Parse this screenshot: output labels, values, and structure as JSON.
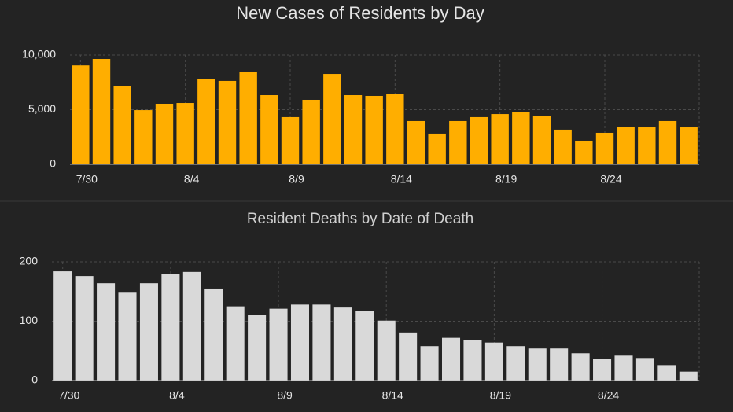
{
  "chart_data": [
    {
      "type": "bar",
      "title": "New Cases of Residents by Day",
      "categories": [
        "7/30",
        null,
        null,
        null,
        null,
        "8/4",
        null,
        null,
        null,
        null,
        "8/9",
        null,
        null,
        null,
        null,
        "8/14",
        null,
        null,
        null,
        null,
        "8/19",
        null,
        null,
        null,
        null,
        "8/24",
        null,
        null,
        null,
        null
      ],
      "values": [
        9050,
        9640,
        7190,
        4960,
        5540,
        5610,
        7770,
        7630,
        8490,
        6330,
        4320,
        5900,
        8270,
        6330,
        6260,
        6470,
        3960,
        2810,
        3960,
        4320,
        4600,
        4750,
        4390,
        3170,
        2160,
        2880,
        3450,
        3380,
        3960,
        3380
      ],
      "color": "#ffae00",
      "ylim": [
        0,
        10000
      ],
      "yticks": [
        0,
        {
          "value": 5000,
          "label": "5,000"
        },
        {
          "value": 10000,
          "label": "10,000"
        }
      ],
      "grid": true
    },
    {
      "type": "bar",
      "title": "Resident Deaths by Date of Death",
      "categories": [
        "7/30",
        null,
        null,
        null,
        null,
        "8/4",
        null,
        null,
        null,
        null,
        "8/9",
        null,
        null,
        null,
        null,
        "8/14",
        null,
        null,
        null,
        null,
        "8/19",
        null,
        null,
        null,
        null,
        "8/24",
        null,
        null,
        null,
        null
      ],
      "values": [
        184,
        176,
        164,
        148,
        164,
        179,
        183,
        155,
        125,
        111,
        121,
        128,
        128,
        123,
        117,
        101,
        81,
        58,
        72,
        68,
        64,
        58,
        54,
        54,
        46,
        36,
        42,
        38,
        26,
        15
      ],
      "color": "#d9d9d9",
      "ylim": [
        0,
        200
      ],
      "yticks": [
        0,
        100,
        200
      ],
      "grid": true
    }
  ]
}
